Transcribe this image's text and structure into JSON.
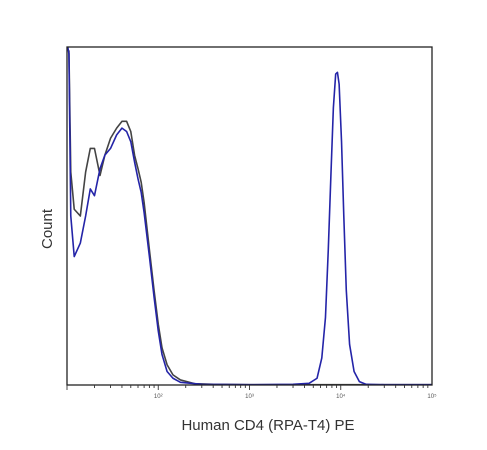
{
  "chart_data": {
    "type": "line",
    "title": "",
    "xlabel": "Human CD4 (RPA-T4) PE",
    "ylabel": "Count",
    "x_scale": "log",
    "xlim": [
      10,
      100000
    ],
    "ylim": [
      0,
      100
    ],
    "x_ticks": [
      100,
      1000,
      10000,
      100000
    ],
    "x_tick_labels": [
      "10²",
      "10³",
      "10⁴",
      "10⁵"
    ],
    "grid": false,
    "legend": "none",
    "series": [
      {
        "color": "#444444",
        "points": [
          [
            10.5,
            99
          ],
          [
            11,
            63
          ],
          [
            12,
            52
          ],
          [
            14,
            50
          ],
          [
            16,
            63
          ],
          [
            18,
            70
          ],
          [
            20,
            70
          ],
          [
            23,
            62
          ],
          [
            26,
            68
          ],
          [
            30,
            73
          ],
          [
            35,
            76
          ],
          [
            40,
            78
          ],
          [
            45,
            78
          ],
          [
            50,
            75
          ],
          [
            55,
            68
          ],
          [
            60,
            64
          ],
          [
            65,
            60
          ],
          [
            70,
            54
          ],
          [
            80,
            40
          ],
          [
            90,
            28
          ],
          [
            100,
            18
          ],
          [
            110,
            11
          ],
          [
            125,
            6
          ],
          [
            145,
            3
          ],
          [
            175,
            1.5
          ],
          [
            250,
            0.4
          ],
          [
            400,
            0.2
          ],
          [
            1000,
            0.1
          ],
          [
            10000,
            0.1
          ],
          [
            100000,
            0.1
          ]
        ]
      },
      {
        "color": "#2424a8",
        "points": [
          [
            10.2,
            100
          ],
          [
            10.5,
            98
          ],
          [
            11,
            50
          ],
          [
            12,
            38
          ],
          [
            14,
            42
          ],
          [
            16,
            50
          ],
          [
            18,
            58
          ],
          [
            20,
            56
          ],
          [
            23,
            64
          ],
          [
            26,
            68
          ],
          [
            30,
            70
          ],
          [
            35,
            74
          ],
          [
            40,
            76
          ],
          [
            45,
            75
          ],
          [
            50,
            72
          ],
          [
            55,
            66
          ],
          [
            60,
            61
          ],
          [
            65,
            57
          ],
          [
            70,
            51
          ],
          [
            80,
            38
          ],
          [
            90,
            26
          ],
          [
            100,
            16
          ],
          [
            110,
            9
          ],
          [
            125,
            4
          ],
          [
            145,
            2
          ],
          [
            175,
            0.8
          ],
          [
            300,
            0.2
          ],
          [
            1000,
            0.1
          ],
          [
            3000,
            0.2
          ],
          [
            4500,
            0.5
          ],
          [
            5500,
            2
          ],
          [
            6200,
            8
          ],
          [
            6800,
            20
          ],
          [
            7300,
            40
          ],
          [
            7800,
            62
          ],
          [
            8300,
            82
          ],
          [
            8800,
            92
          ],
          [
            9200,
            92.5
          ],
          [
            9600,
            89
          ],
          [
            10200,
            72
          ],
          [
            10800,
            50
          ],
          [
            11500,
            28
          ],
          [
            12500,
            12
          ],
          [
            14000,
            4
          ],
          [
            16000,
            1
          ],
          [
            19000,
            0.2
          ],
          [
            30000,
            0.1
          ],
          [
            100000,
            0.1
          ]
        ]
      }
    ]
  }
}
